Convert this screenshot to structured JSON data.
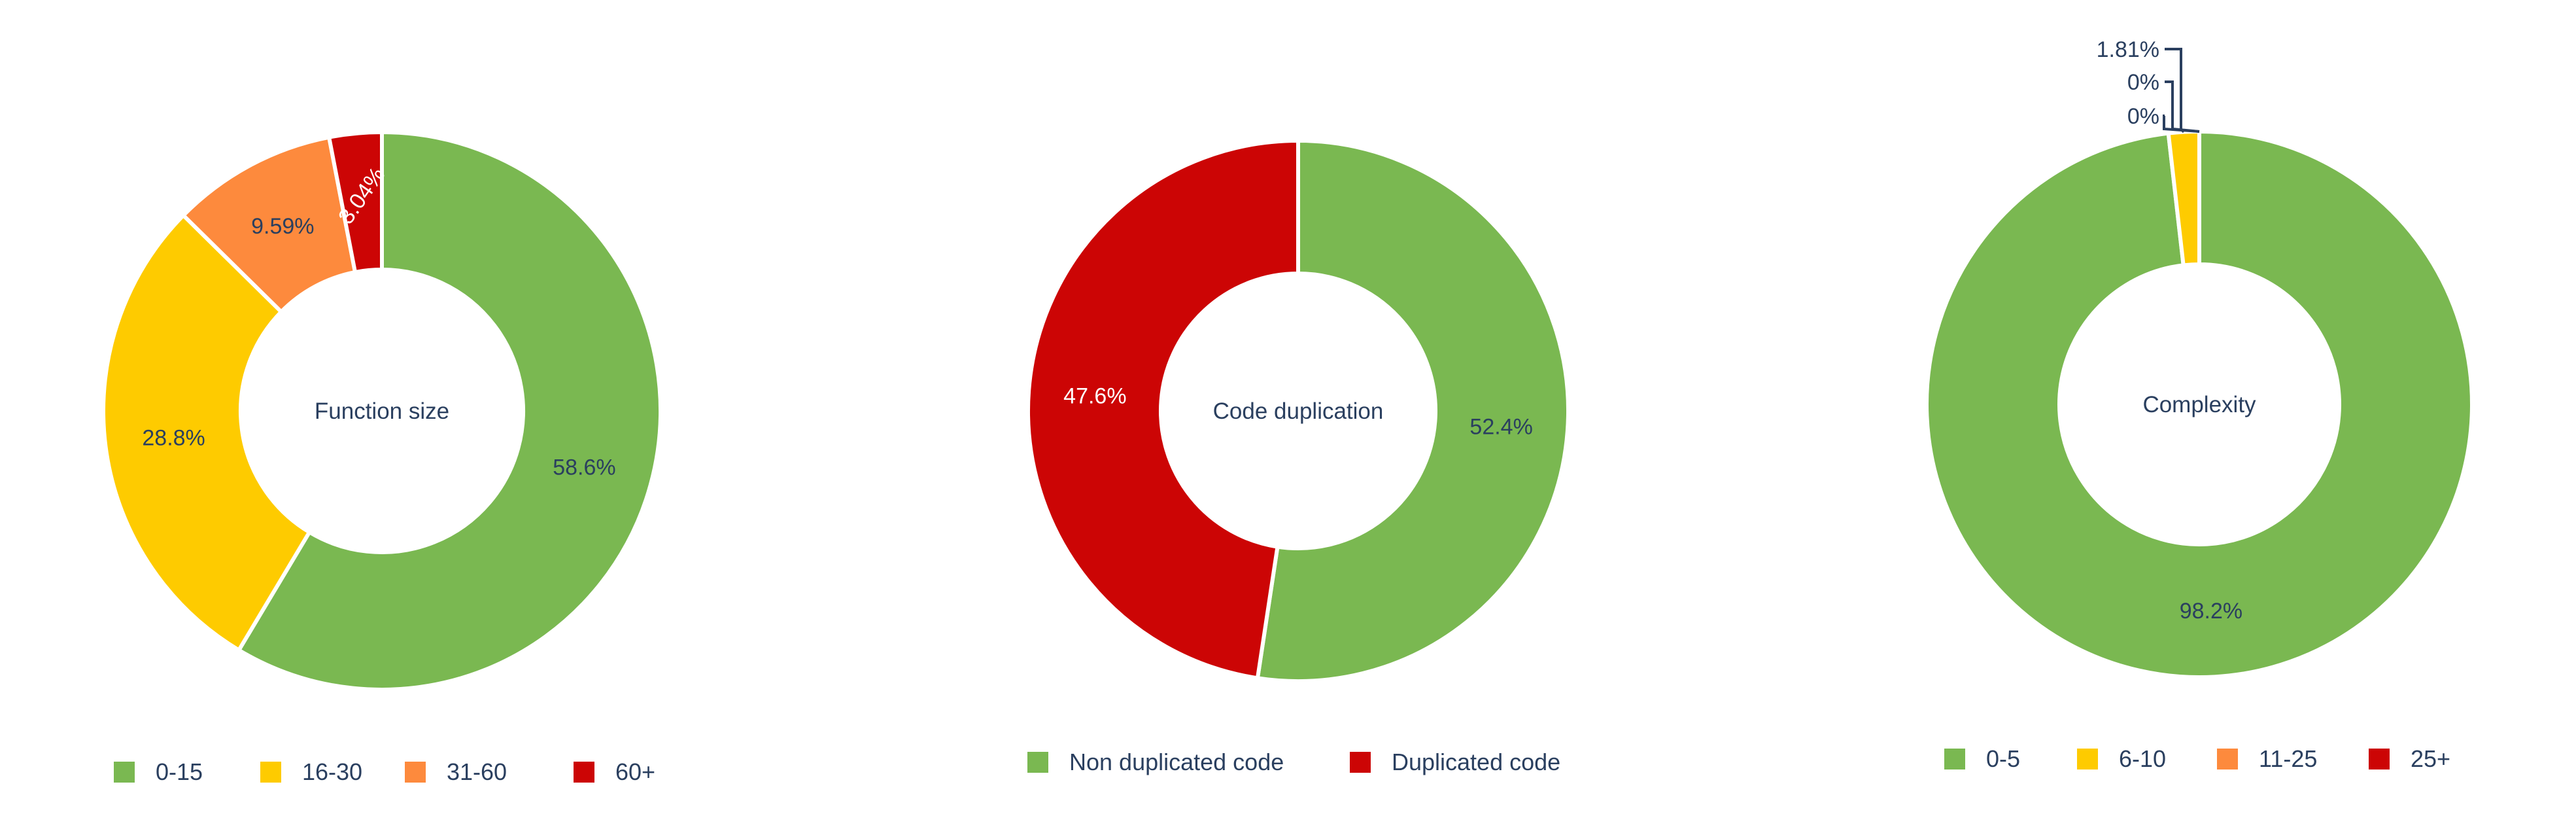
{
  "colors": {
    "green": "#7ab851",
    "yellow": "#fecb00",
    "orange": "#fd8a3d",
    "red": "#cc0505",
    "text_dark": "#2a3f5f",
    "text_on_red": "#ffffff"
  },
  "chart_data": [
    {
      "type": "pie",
      "hole": true,
      "title": "Function size",
      "categories": [
        "0-15",
        "16-30",
        "31-60",
        "60+"
      ],
      "values": [
        58.6,
        28.8,
        9.59,
        3.04
      ],
      "labels": [
        "58.6%",
        "28.8%",
        "9.59%",
        "3.04%"
      ],
      "colors": [
        "#7ab851",
        "#fecb00",
        "#fd8a3d",
        "#cc0505"
      ],
      "legend_position": "bottom"
    },
    {
      "type": "pie",
      "hole": true,
      "title": "Code duplication",
      "categories": [
        "Non duplicated code",
        "Duplicated code"
      ],
      "values": [
        52.4,
        47.6
      ],
      "labels": [
        "52.4%",
        "47.6%"
      ],
      "colors": [
        "#7ab851",
        "#cc0505"
      ],
      "legend_position": "bottom"
    },
    {
      "type": "pie",
      "hole": true,
      "title": "Complexity",
      "categories": [
        "0-5",
        "6-10",
        "11-25",
        "25+"
      ],
      "values": [
        98.2,
        1.81,
        0,
        0
      ],
      "labels": [
        "98.2%",
        "1.81%",
        "0%",
        "0%"
      ],
      "colors": [
        "#7ab851",
        "#fecb00",
        "#fd8a3d",
        "#cc0505"
      ],
      "legend_position": "bottom"
    }
  ]
}
